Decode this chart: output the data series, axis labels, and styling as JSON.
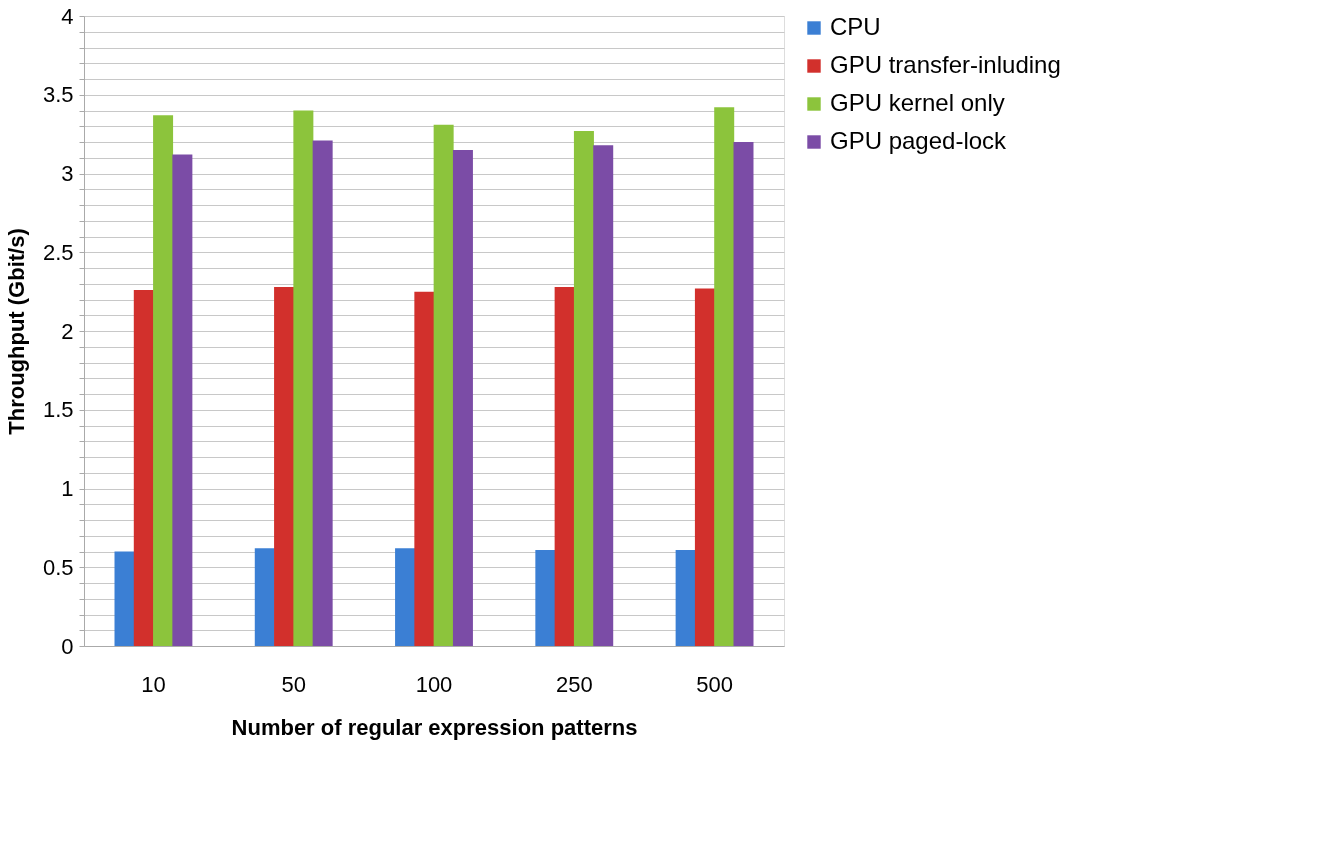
{
  "chart_data": {
    "type": "bar",
    "xlabel": "Number of regular expression patterns",
    "ylabel": "Throughput (Gbit/s)",
    "categories": [
      "10",
      "50",
      "100",
      "250",
      "500"
    ],
    "series": [
      {
        "name": "CPU",
        "color": "#3b7fd4",
        "values": [
          0.6,
          0.62,
          0.62,
          0.61,
          0.61
        ]
      },
      {
        "name": "GPU transfer-inluding",
        "color": "#d2302c",
        "values": [
          2.26,
          2.28,
          2.25,
          2.28,
          2.27
        ]
      },
      {
        "name": "GPU kernel only",
        "color": "#8cc43c",
        "values": [
          3.37,
          3.4,
          3.31,
          3.27,
          3.42
        ]
      },
      {
        "name": "GPU paged-lock",
        "color": "#7b4ca6",
        "values": [
          3.12,
          3.21,
          3.15,
          3.18,
          3.2
        ]
      }
    ],
    "ylim": [
      0,
      4
    ],
    "yticks": [
      0,
      {
        "value": 0.1,
        "label": null
      },
      {
        "value": 0.2,
        "label": null
      },
      {
        "value": 0.3,
        "label": null
      },
      {
        "value": 0.4,
        "label": null
      },
      0.5,
      {
        "value": 0.6,
        "label": null
      },
      {
        "value": 0.7,
        "label": null
      },
      {
        "value": 0.8,
        "label": null
      },
      {
        "value": 0.9,
        "label": null
      },
      1,
      {
        "value": 1.1,
        "label": null
      },
      {
        "value": 1.2,
        "label": null
      },
      {
        "value": 1.3,
        "label": null
      },
      {
        "value": 1.4,
        "label": null
      },
      1.5,
      {
        "value": 1.6,
        "label": null
      },
      {
        "value": 1.7,
        "label": null
      },
      {
        "value": 1.8,
        "label": null
      },
      {
        "value": 1.9,
        "label": null
      },
      2,
      {
        "value": 2.1,
        "label": null
      },
      {
        "value": 2.2,
        "label": null
      },
      {
        "value": 2.3,
        "label": null
      },
      {
        "value": 2.4,
        "label": null
      },
      2.5,
      {
        "value": 2.6,
        "label": null
      },
      {
        "value": 2.7,
        "label": null
      },
      {
        "value": 2.8,
        "label": null
      },
      {
        "value": 2.9,
        "label": null
      },
      3,
      {
        "value": 3.1,
        "label": null
      },
      {
        "value": 3.2,
        "label": null
      },
      {
        "value": 3.3,
        "label": null
      },
      {
        "value": 3.4,
        "label": null
      },
      3.5,
      {
        "value": 3.6,
        "label": null
      },
      {
        "value": 3.7,
        "label": null
      },
      {
        "value": 3.8,
        "label": null
      },
      {
        "value": 3.9,
        "label": null
      },
      4
    ],
    "grid": "y",
    "legend": "right"
  }
}
